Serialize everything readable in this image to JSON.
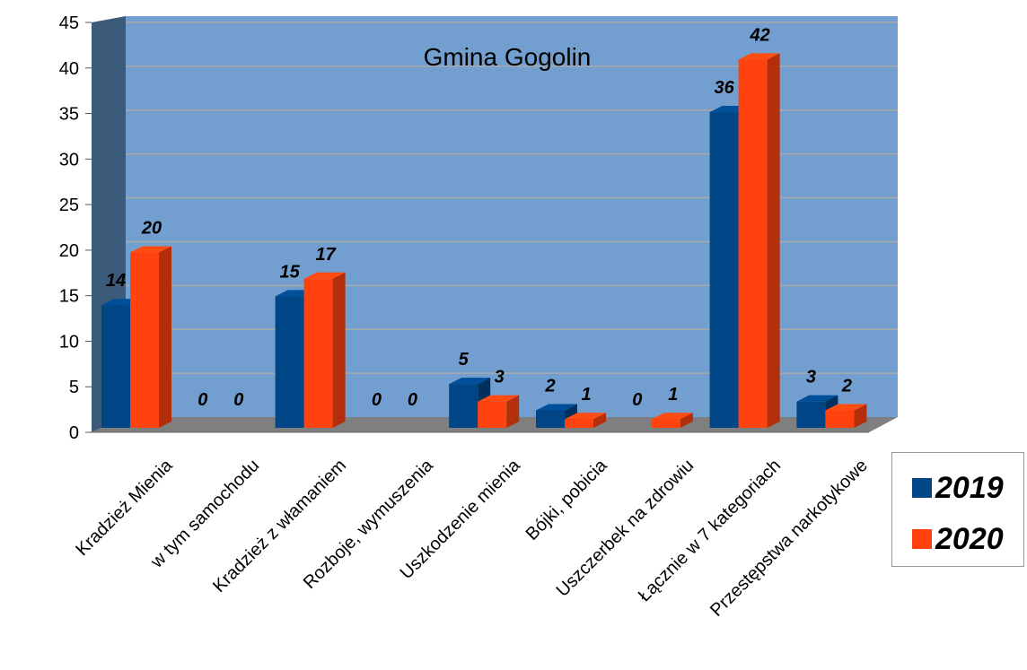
{
  "chart_data": {
    "type": "bar",
    "title": "Gmina Gogolin",
    "xlabel": "",
    "ylabel": "",
    "ylim": [
      0,
      45
    ],
    "yticks": [
      0,
      5,
      10,
      15,
      20,
      25,
      30,
      35,
      40,
      45
    ],
    "grid": true,
    "legend": "right",
    "categories": [
      "Kradzież Mienia",
      "w tym samochodu",
      "Kradzież z włamaniem",
      "Rozboje, wymuszenia",
      "Uszkodzenie mienia",
      "Bójki, pobicia",
      "Uszczerbek na zdrowiu",
      "Łącznie w 7 kategoriach",
      "Przestępstwa narkotykowe"
    ],
    "series": [
      {
        "name": "2019",
        "color": "#004586",
        "values": [
          14,
          0,
          15,
          0,
          5,
          2,
          0,
          36,
          3
        ]
      },
      {
        "name": "2020",
        "color": "#ff420e",
        "values": [
          20,
          0,
          17,
          0,
          3,
          1,
          1,
          42,
          2
        ]
      }
    ]
  }
}
